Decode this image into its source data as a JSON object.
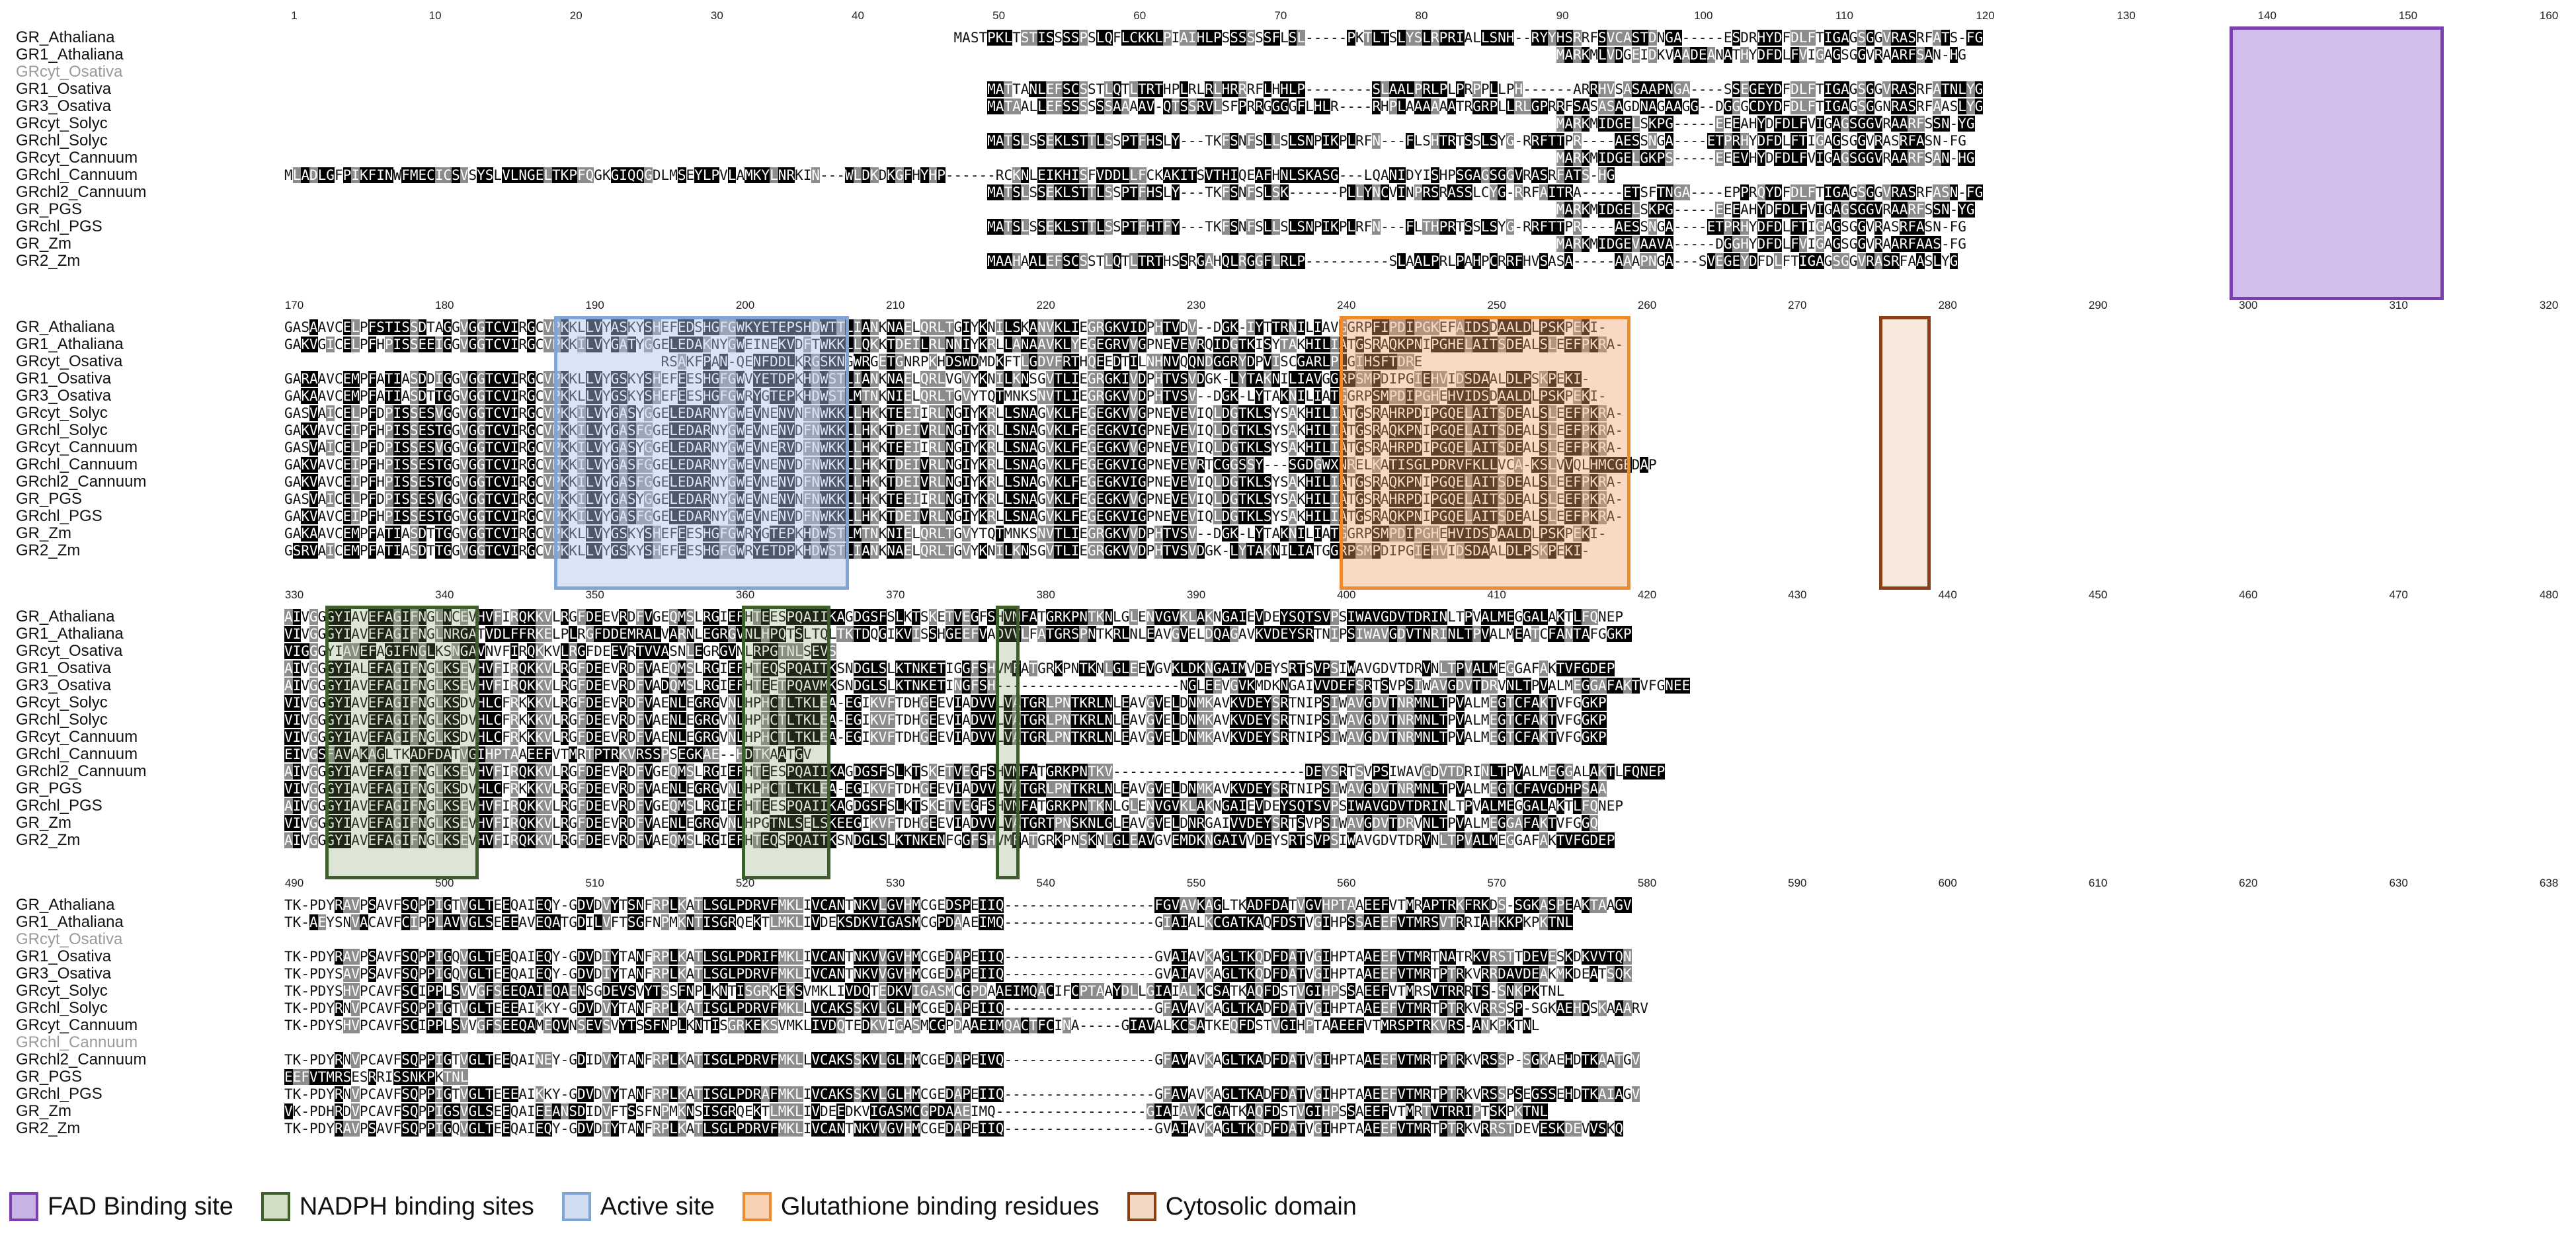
{
  "blocks": [
    {
      "ruler": [
        "1",
        "10",
        "20",
        "30",
        "40",
        "50",
        "60",
        "70",
        "80",
        "90",
        "100",
        "110",
        "120",
        "130",
        "140",
        "150",
        "160"
      ],
      "rows": [
        {
          "name": "GR_Athaliana",
          "seq": "                                                                                MASTPKLTSTISSSSPSLQFLCKKLPIAIHLPSSSSSSFLSL-----PKTLTSLYSLRPRIALLSNH--RYYHSRRFSVCASTDNGA-----ESDRHYDFDLFTIGAGSGGVRASRFATS-FG"
        },
        {
          "name": "GR1_Athaliana",
          "seq": "                                                                                                                                                        MARKMLVDGEIDKVAADEANATHYDFDLFVIGAGSGGVRAARFSAN-HG"
        },
        {
          "name": "GRcyt_Osativa",
          "gray": true,
          "seq": ""
        },
        {
          "name": "GR1_Osativa",
          "seq": "                                                                                    MATTANLEFSCSSTLQTLTRTHPLRLRLHRRRFLHHLP--------SLAALPRLPLPRPPLLPH------ARRHVSASAAPNGA----SSEGEYDFDLFTIGAGSGGVRASRFATNLYG"
        },
        {
          "name": "GR3_Osativa",
          "seq": "                                                                                    MATAALLEFSSSSSSAAAAV-QTSSRVLSFPRRGGGGFLHLR----RHPLAAAAAATRGRPLLRLGPRRFSASASAGDNAGAAGG--DGGGCDYDFDLFTIGAGSGGNRASRFAASLYG"
        },
        {
          "name": "GRcyt_Solyc",
          "seq": "                                                                                                                                                        MARKMIDGELSKPG-----EEEAHYDFDLFVIGAGSGGVRAARFSSN-YG"
        },
        {
          "name": "GRchl_Solyc",
          "seq": "                                                                                    MATSLSSEKLSTTLSSPTFHSLY---TKFSNFSLLSLSNPIKPLRFN---FLSHTRTSSLSYG-RRFTTPR----AESSNGA----ETPRHYDFDLFTIGAGSGGVRASRFASN-FG"
        },
        {
          "name": "GRcyt_Cannuum",
          "seq": "                                                                                                                                                        MARKMIDGELGKPS-----EEEVHYDFDLFVIGAGSGGVRAARFSAN-HG"
        },
        {
          "name": "GRchl_Cannuum",
          "seq": "MLADLGFPIKFINWFMECICSVSYSLVLNGELTKPFQGKGIQQGDLMSEYLPVLAMKYLNRKIN---WLDKDKGFHYHP------RCKNLEIKHISFVDDLLFCKAKITSVTHIQEAFHNLSKASG---LQANIDYISHPSGAGSGGVRASRFATS-HG"
        },
        {
          "name": "GRchl2_Cannuum",
          "seq": "                                                                                    MATSLSSEKLSTTLSSPTFHSLY---TKFSNFSLSK------PLLYNCVINPRSRASSLCYG-RRFAITRA-----ETSFTNGA----EPPRQYDFDLFTIGAGSGGVRASRFASN-FG"
        },
        {
          "name": "GR_PGS",
          "seq": "                                                                                                                                                        MARKMIDGELSKPG-----EEEAHYDFDLFVIGAGSGGVRAARFSSN-YG"
        },
        {
          "name": "GRchl_PGS",
          "seq": "                                                                                    MATSLSSEKLSTTLSSPTFHTFY---TKFSNFSLLSLSNPIKPLRFN---FLTHPRTSSLSYG-RRFTTPR----AESSNGA----ETPRHYDFDLFTIGAGSGGVRASRFASN-FG"
        },
        {
          "name": "GR_Zm",
          "seq": "                                                                                                                                                        MARKMIDGEVAAVA-----DGGHYDFDLFVIGAGSGGVRAARFAAS-FG"
        },
        {
          "name": "GR2_Zm",
          "seq": "                                                                                    MAAHAALEFSCSSTLQTLTRTHSSRGAHQLRGGFLRLP----------SLAALPRLPAHPCRRFHVSASA-----AAAPNGA---SVEGEYDFDLFTIGAGSGGVRASRFAASLYG"
        }
      ]
    },
    {
      "ruler": [
        "170",
        "180",
        "190",
        "200",
        "210",
        "220",
        "230",
        "240",
        "250",
        "260",
        "270",
        "280",
        "290",
        "300",
        "310",
        "320"
      ],
      "rows": [
        {
          "name": "GR_Athaliana",
          "seq": "GASAAVCELPFSTISSDTAGGVGGTCVIRGCVPKKLLVYASKYSHEFEDSHGFGWKYETEPSHDWTTLIANKNAELQRLTGIYKNILSKANVKLIEGRGKVIDPHTVDV--DGK-IYTTRNILIAVGGRPFIPDIPGKEFAIDSDAALDLPSKPEKI-"
        },
        {
          "name": "GR1_Athaliana",
          "seq": "GAKVGICELPFHPISSEEIGGVGGTCVIRGCVPKKILVYGATYGGELEDAKNYGWEINEKVDFTWKKLLQKKTDEILRLNNIYKRLLANAAVKLYEGEGRVVGPNEVEVRQIDGTKISYTAKHILIATGSRAQKPNIPGHELAITSDEALSLEEFPKRA-"
        },
        {
          "name": "GRcyt_Osativa",
          "seq": "                                             RSAKFPAN-QENFDDLKRGSKNGWRGETGNRPKHDSWDMDKFTLGDVFRTHQEEDTILNHNVQQNDGGRYDPVISCGARLPLGIHSFTDRE"
        },
        {
          "name": "GR1_Osativa",
          "seq": "GARAAVCEMPFATIASDDIGGVGGTCVIRGCVPKKLLVYGSKYSHEFEESHGFGWVYETDPKHDWSTLIANKNAELQRLVGVYKNILKNSGVTLIEGRGKIVDPHTVSVDGK-LYTAKNILIAVGGRPSMPDIPGIEHVIDSDAALDLPSKPEKI-"
        },
        {
          "name": "GR3_Osativa",
          "seq": "GAKAAVCEMPFATIASDTTGGVGGTCVIRGCVPKKLLVYGSKYSHEFEESHGFGWRYGTEPKHDWSTLMTNKNIELQRLTGVYTQTMNKSNVTLIEGRGKVVDPHTVSV--DGK-LYTAKNILIATGGRPSMPDIPGHEHVIDSDAALDLPSKPEKI-"
        },
        {
          "name": "GRcyt_Solyc",
          "seq": "GASVAICELPFDPISSESVGGVGGTCVIRGCVPKKILVYGASYGGELEDARNYGWEVNENVNFNWKKLLHKKTEEIIRLNGIYKRLLSNAGVKLFEGEGKVVGPNEVEVIQLDGTKLSYSAKHILIATGSRAHRPDIPGQELAITSDEALSLEEFPKRA-"
        },
        {
          "name": "GRchl_Solyc",
          "seq": "GAKVAVCEIPFHPISSESTGGVGGTCVIRGCVPKKILVYGASFGGELEDARNYGWEVNENVDFNWKKLLHKKTDEIVRLNGIYKRLLSNAGVKLFEGEGKVIGPNEVEVIQLDGTKLSYSAKHILIATGSRAQKPNIPGQELAITSDEALSLEEFPKRA-"
        },
        {
          "name": "GRcyt_Cannuum",
          "seq": "GASVAICELPFDPISSESVGGVGGTCVIRGCVPKKILVYGASYGGELEDARNYGWEVNERVDFNWKKLLHKKTEEIIRLNGIYKRLLSNAGVKLFEGEGKVVGPNEVEVIQLDGTKLSYSAKHILIATGSRAHRPDIPGQELAITSDEALSLEEFPKRA-"
        },
        {
          "name": "GRchl_Cannuum",
          "seq": "GAKVAVCEIPFHPISSESTGGVGGTCVIRGCVPKKILVYGASFGGELEDARNYGWEVNENVDFNWKKLLHKKTDEIVRLNGIYKRLLSNAGVKLFEGEGKVIGPNEVEVRTCGGSSY---SGDGWXNRELKATISGLPDRVFKLLVCA-KSLVVQLHMCGEDAP"
        },
        {
          "name": "GRchl2_Cannuum",
          "seq": "GAKVAVCEIPFHPISSESTGGVGGTCVIRGCVPKKILVYGASFGGELEDARNYGWEVNENVDFNWKKLLHKKTDEIVRLNGIYKRLLSNAGVKLFEGEGKVIGPNEVEVIQLDGTKLSYSAKHILIATGSRAQKPNIPGQELAITSDEALSLEEFPKRA-"
        },
        {
          "name": "GR_PGS",
          "seq": "GASVAICELPFDPISSESVGGVGGTCVIRGCVPKKILVYGASYGGELEDARNYGWEVNENVNFNWKKLLHKKTEEIIRLNGIYKRLLSNAGVKLFEGEGKVVGPNEVEVIQLDGTKLSYSAKHILIATGSRAHRPDIPGQELAITSDEALSLEEFPKRA-"
        },
        {
          "name": "GRchl_PGS",
          "seq": "GAKVAVCEIPFHPISSESTGGVGGTCVIRGCVPKKILVYGASFGGELEDARNYGWEVNENVDFNWKKLLHKKTDEIVRLNGIYKRLLSNAGVKLFEGEGKVIGPNEVEVIQLDGTKLSYSAKHILIATGSRAQKPNIPGQELAITSDEALSLEEFPKRA-"
        },
        {
          "name": "GR_Zm",
          "seq": "GAKAAVCEMPFATIASDTTGGVGGTCVIRGCVPKKLLVYGSKYSHEFEESHGFGWRYGTEPKHDWSTLMTNKNIELQRLTGVYTQTMNKSNVTLIEGRGKVVDPHTVSV--DGK-LYTAKNILIATGGRPSMPDIPGHEHVIDSDAALDLPSKPEKI-"
        },
        {
          "name": "GR2_Zm",
          "seq": "GSRVAICEMPFATIASDTTGGVGGTCVIRGCVPKKLLVYGSKYSHEFEESHGFGWRYETDPKHDWSTLIANKNAELQRLTGVYKNILKNSGVTLIEGRGKVVDPHTVSVDGK-LYTAKNILIATGGRPSMPDIPGIEHVIDSDAALDLPSKPEKI-"
        }
      ]
    },
    {
      "ruler": [
        "330",
        "340",
        "350",
        "360",
        "370",
        "380",
        "390",
        "400",
        "410",
        "420",
        "430",
        "440",
        "450",
        "460",
        "470",
        "480"
      ],
      "rows": [
        {
          "name": "GR_Athaliana",
          "seq": "AIVGGGYIAVEFAGIFNGLNCEVHVFIRQKKVLRGFDEEVRDFVGEQMSLRGIEFHTEESPQAIIKAGDGSFSLKTSKETVEGFSHVMFATGRKPNTKNLGLENVGVKLAKNGAIEVDEYSQTSVPSIWAVGDVTDRINLTPVALMEGGALAKTLFQNEP"
        },
        {
          "name": "GR1_Athaliana",
          "seq": "VIVGGGYIAVEFAGIFNGLNRGATVDLFFRKELPLRGFDDEMRALVARNLEGRGVNLHPQTSLTQLTKTDQGIKVISSHGEEFVADVVLFATGRSPNTKRLNLEAVGVELDQAGAVKVDEYSRTNIPSIWAVGDVTNRINLTPVALMEATCFANTAFGGKP"
        },
        {
          "name": "GRcyt_Osativa",
          "seq": "VIGGGYIAVEFAGIFNGLKSNGAVNVFIRQKKVLRGFDEEVRTVVASNLEGRGVNLRPGTNLSEVS"
        },
        {
          "name": "GR1_Osativa",
          "seq": "AIVGGGYIALEFAGIFNGLKSEVHVFIRQKKVLRGFDEEVRDFVAEQMSLRGIEFHTEQSPQAITKSNDGLSLKTNKETIGGFSHVMFATGRKPNTKNLGLEEVGVKLDKNGAIMVDEYSRTSVPSIWAVGDVTDRVNLTPVALMEGGAFAKTVFGDEP"
        },
        {
          "name": "GR3_Osativa",
          "seq": "AIVGGGYIAVEFAGIFNGLKSEVHVFIRQKKVLRGFDEEVRDFVADQMSLRGIEFHTEETPQAVMKSNDGLSLKTNKETINGFSH----------------------NGLEEVGVKMDKNGAIVVDEFSRTSVPSIWAVGDVTDRVNLTPVALMEGGAFAKTVFGNEE"
        },
        {
          "name": "GRcyt_Solyc",
          "seq": "VIVGGGYIAVEFAGIFNGLKSDVHLCFRKKKVLRGFDEEVRDFVAENLEGRGVNLHPHCTLTKLEA-EGIKVFTDHGEEVIADVVLVATGRLPNTKRLNLEAVGVELDNMKAVKVDEYSRTNIPSIWAVGDVTNRMNLTPVALMEGTCFAKTVFGGKP"
        },
        {
          "name": "GRchl_Solyc",
          "seq": "VIVGGGYIAVEFAGIFNGLKSDVHLCFRKKKVLRGFDEEVRDFVAENLEGRGVNLHPHCTLTKLEA-EGIKVFTDHGEEVIADVVLVATGRLPNTKRLNLEAVGVELDNMKAVKVDEYSRTNIPSIWAVGDVTNRMNLTPVALMEGTCFAKTVFGGKP"
        },
        {
          "name": "GRcyt_Cannuum",
          "seq": "VIVGGGYIAVEFAGIFNGLKSDVHLCFRKKKVLRGFDEEVRDFVAENLEGRGVNLHPHCTLTKLEA-EGIKVFTDHGEEVIADVVLVATGRLPNTKRLNLEAVGVELDNMKAVKVDEYSRTNIPSIWAVGDVTNRMNLTPVALMEGTCFAKTVFGGKP"
        },
        {
          "name": "GRchl_Cannuum",
          "seq": "EIVGSFAVAKAGLTKADFDATVGIHPTAAEEFVTMRTPTRKVRSSPSEGKAE--HDTKAATGV"
        },
        {
          "name": "GRchl2_Cannuum",
          "seq": "AIVGGGYIAVEFAGIFNGLKSEVHVFIRQKKVLRGFDEEVRDFVGEQMSLRGIEFHTEESPQAIIKAGDGSFSLKTSKETVEGFSHVMFATGRKPNTKV-----------------------DEYSRTSVPSIWAVGDVTDRINLTPVALMEGGALAKTLFQNEP"
        },
        {
          "name": "GR_PGS",
          "seq": "VIVGGGYIAVEFAGIFNGLKSDVHLCFRKKKVLRGFDEEVRDFVAENLEGRGVNLHPHCTLTKLEA-EGIKVFTDHGEEVIADVVLVATGRLPNTKRLNLEAVGVELDNMKAVKVDEYSRTNIPSIWAVGDVTNRMNLTPVALMEGTCFAVGDHPSAA"
        },
        {
          "name": "GRchl_PGS",
          "seq": "AIVGGGYIAVEFAGIFNGLKSEVHVFIRQKKVLRGFDEEVRDFVGEQMSLRGIEFHTEESPQAIIKAGDGSFSLKTSKETVEGFSHVMFATGRKPNTKNLGLENVGVKLAKNGAIEVDEYSQTSVPSIWAVGDVTDRINLTPVALMEGGALAKTLFQNEP"
        },
        {
          "name": "GR_Zm",
          "seq": "VIVGGGYIAVEFAGIFNGLKSEVHVFIRQKKVLRGFDEEVRDFVAENLEGRGVNLHPGTNLSELSKEEGIKVFTDHGEEVIADVVLVATGRTPNSKNLGLEAVGVELDNRGAIVVDEYSRTSVPSIWAVGDVTDRVNLTPVALMEGGAFAKTVFGGQ"
        },
        {
          "name": "GR2_Zm",
          "seq": "AIVGGGYIAVEFAGIFNGLKSEVHVFIRQKKVLRGFDEEVRDFVAEQMSLRGIEFHTEQSPQAITKSNDGLSLKTNKENFGGFSHVMFATGRKPNSKNLGLEAVGVEMDKNGAIVVDEYSRTSVPSIWAVGDVTDRVNLTPVALMEGGAFAKTVFGDEP"
        }
      ]
    },
    {
      "ruler": [
        "490",
        "500",
        "510",
        "520",
        "530",
        "540",
        "550",
        "560",
        "570",
        "580",
        "590",
        "600",
        "610",
        "620",
        "630",
        "638"
      ],
      "rows": [
        {
          "name": "GR_Athaliana",
          "seq": "TK-PDYRAVPSAVFSQPPIGTVGLTEEQAIEQY-GDVDVYTSNFRPLKATLSGLPDRVFMKLIVCANTNKVLGVHMCGEDSPEIIQ------------------FGVAVKAGLTKADFDATVGVHPTAAEEFVTMRAPTRKFRKDS-SGKASPEAKTAAGV"
        },
        {
          "name": "GR1_Athaliana",
          "seq": "TK-AEYSNVACAVFCIPPLAVVGLSEEEAVEQATGDILVFTSGFNPMKNTISGRQEKTLMKLIVDEKSDKVIGASMCGPDAAEIMQ------------------GIAIALKCGATKAQFDSTVGIHPSSAEEFVTMRSVTRRIAHKKPKPKTNL"
        },
        {
          "name": "GRcyt_Osativa",
          "gray": true,
          "seq": ""
        },
        {
          "name": "GR1_Osativa",
          "seq": "TK-PDYRAVPSAVFSQPPIGQVGLTEEQAIEQY-GDVDIYTANFRPLKATLSGLPDRIFMKLIVCANTNKVVGVHMCGEDAPEIIQ------------------GVAIAVKAGLTKQDFDATVGIHPTAAEEFVTMRTNATRKVRSTTDEVESKDKVVTQN"
        },
        {
          "name": "GR3_Osativa",
          "seq": "TK-PDYSAVPSAVFSQPPIGQVGLTEEQAIEQY-GDVDIYTANFRPLKATLSGLPDRVFMKLIVCANTNKVVGVHMCGEDAPEIIQ------------------GVAIAVKAGLTKQDFDATVGIHPTAAEEFVTMRTPTRKVRRDAVDEAKMKDEATSQK"
        },
        {
          "name": "GRcyt_Solyc",
          "seq": "TK-PDYSHVPCAVFSCIPPLSVVGFSEEQAIEQAENSGDEVSVYTSSFNPLKNTISGRKEKSVMKLIVDQTEDKVIGASMCGPDAAEIMQACIFCPTAAYDLLGIAIALKCSATKAQFDSTVGIHPSSAEEFVTMRSVTRRRTS-SNKPKTNL"
        },
        {
          "name": "GRchl_Solyc",
          "seq": "TK-PDYRNVPCAVFSQPPIGTVGLTEEEAIKKY-GDVDVYTANFRPLKATISGLPDRVFMKLLVCAKSSKVLGLHMCGEDAPEIIQ------------------GFAVAVKAGLTKADFDATVGIHPTAAEEFVTMRTPTRKVRRSSP-SGKAEHDSKAAARV"
        },
        {
          "name": "GRcyt_Cannuum",
          "seq": "TK-PDYSHVPCAVFSCIPPLSVVGFSEEQAMEQVNSEVSVYTSSFNPLKNTISGRKEKSVMKLIVDQTEDKVIGASMCGPDAAEIMQACTFCINA-----GIAVALKCSATKEQFDSTVGIHPTAAEEFVTMRSPTRKVRS-ANKPKTNL"
        },
        {
          "name": "GRchl_Cannuum",
          "gray": true,
          "seq": ""
        },
        {
          "name": "GRchl2_Cannuum",
          "seq": "TK-PDYRNVPCAVFSQPPIGTVGLTEEQAINEY-GDIDVYTANFRPLKATISGLPDRVFMKLLVCAKSSKVLGLHMCGEDAPEIVQ------------------GFAVAVKAGLTKADFDATVGIHPTAAEEFVTMRTPTRKVRSSP-SGKAEHDTKAATGV"
        },
        {
          "name": "GR_PGS",
          "seq": "EEFVTMRSESRRISSNKPKTNL"
        },
        {
          "name": "GRchl_PGS",
          "seq": "TK-PDYRNVPCAVFSQPPIGTVGLTEEEAIKKY-GDVDVYTANFRPLKATISGLPDRAFMKLIVCAKSSKVLGLHMCGEDAPEIIQ------------------GFAVAVKAGLTKADFDATVGIHPTAAEEFVTMRTPTRKVRSSPSEGSSEHDTKAIAGV"
        },
        {
          "name": "GR_Zm",
          "seq": "VK-PDHRDVPCAVFSQPPIGSVGLSEEQAIEEANSDIDVFTSSFNPMKNSISGRQEKTLMKLIVDEEDKVIGASMCGPDAAEIMQ------------------GIAIAVKCGATKAQFDSTVGIHPSSAEEFVTMRTVTRRIPTSKPKTNL"
        },
        {
          "name": "GR2_Zm",
          "seq": "TK-PDYRAVPSAVFSQPPIGQVGLTEEQAIEQY-GDVDIYTANFRPLKATLSGLPDRVFMKLIVCANTNKVVGVHMCGEDAPEIIQ------------------GVAIAVKAGLTKQDFDATVGIHPTAAEEFVTMRTPTRKVRRSTDEVESKDEVVSKQ"
        }
      ]
    }
  ],
  "legend": [
    {
      "label": "FAD Binding site",
      "fill": "#c9b3e6",
      "border": "#7b3fb0"
    },
    {
      "label": "NADPH binding sites",
      "fill": "#d2dfc6",
      "border": "#3e5f2c"
    },
    {
      "label": "Active site",
      "fill": "#cfdcf2",
      "border": "#7fa5d6"
    },
    {
      "label": "Glutathione binding residues",
      "fill": "#f8d2b3",
      "border": "#ef8a2e"
    },
    {
      "label": "Cytosolic domain",
      "fill": "#f2d9c6",
      "border": "#8a3f16"
    }
  ]
}
